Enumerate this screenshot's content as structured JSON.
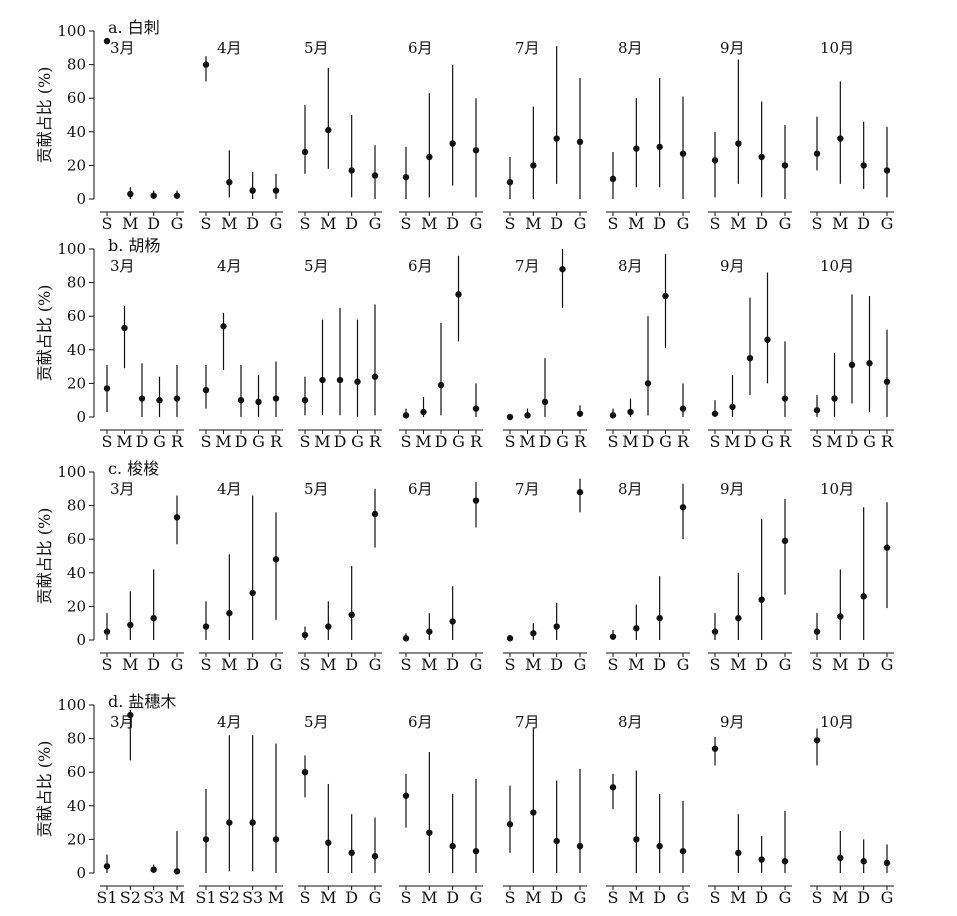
{
  "chart_data": [
    {
      "type": "errorbar",
      "title": "a. 白刺",
      "ylabel": "贡献占比 (%)",
      "ylim": [
        0,
        100
      ],
      "yticks": [
        0,
        20,
        40,
        60,
        80,
        100
      ],
      "months": [
        {
          "label": "3月",
          "categories": [
            "S",
            "M",
            "D",
            "G"
          ],
          "values": [
            94,
            3,
            2,
            2
          ],
          "lower": [
            94,
            0,
            0,
            0
          ],
          "upper": [
            94,
            7,
            5,
            5
          ]
        },
        {
          "label": "4月",
          "categories": [
            "S",
            "M",
            "D",
            "G"
          ],
          "values": [
            80,
            10,
            5,
            5
          ],
          "lower": [
            70,
            1,
            0,
            0
          ],
          "upper": [
            85,
            29,
            16,
            15
          ]
        },
        {
          "label": "5月",
          "categories": [
            "S",
            "M",
            "D",
            "G"
          ],
          "values": [
            28,
            41,
            17,
            14
          ],
          "lower": [
            15,
            18,
            1,
            0
          ],
          "upper": [
            56,
            78,
            50,
            32
          ]
        },
        {
          "label": "6月",
          "categories": [
            "S",
            "M",
            "D",
            "G"
          ],
          "values": [
            13,
            25,
            33,
            29
          ],
          "lower": [
            0,
            1,
            8,
            1
          ],
          "upper": [
            31,
            63,
            80,
            60
          ]
        },
        {
          "label": "7月",
          "categories": [
            "S",
            "M",
            "D",
            "G"
          ],
          "values": [
            10,
            20,
            36,
            34
          ],
          "lower": [
            0,
            0,
            9,
            0
          ],
          "upper": [
            25,
            55,
            91,
            72
          ]
        },
        {
          "label": "8月",
          "categories": [
            "S",
            "M",
            "D",
            "G"
          ],
          "values": [
            12,
            30,
            31,
            27
          ],
          "lower": [
            0,
            7,
            7,
            0
          ],
          "upper": [
            28,
            60,
            72,
            61
          ]
        },
        {
          "label": "9月",
          "categories": [
            "S",
            "M",
            "D",
            "G"
          ],
          "values": [
            23,
            33,
            25,
            20
          ],
          "lower": [
            1,
            9,
            1,
            0
          ],
          "upper": [
            40,
            83,
            58,
            44
          ]
        },
        {
          "label": "10月",
          "categories": [
            "S",
            "M",
            "D",
            "G"
          ],
          "values": [
            27,
            36,
            20,
            17
          ],
          "lower": [
            17,
            9,
            6,
            1
          ],
          "upper": [
            49,
            70,
            46,
            43
          ]
        }
      ]
    },
    {
      "type": "errorbar",
      "title": "b. 胡杨",
      "ylabel": "贡献占比 (%)",
      "ylim": [
        0,
        100
      ],
      "yticks": [
        0,
        20,
        40,
        60,
        80,
        100
      ],
      "months": [
        {
          "label": "3月",
          "categories": [
            "S",
            "M",
            "D",
            "G",
            "R"
          ],
          "values": [
            17,
            53,
            11,
            10,
            11
          ],
          "lower": [
            3,
            29,
            0,
            0,
            0
          ],
          "upper": [
            31,
            66,
            32,
            24,
            31
          ]
        },
        {
          "label": "4月",
          "categories": [
            "S",
            "M",
            "D",
            "G",
            "R"
          ],
          "values": [
            16,
            54,
            10,
            9,
            11
          ],
          "lower": [
            5,
            28,
            0,
            0,
            0
          ],
          "upper": [
            31,
            62,
            31,
            25,
            33
          ]
        },
        {
          "label": "5月",
          "categories": [
            "S",
            "M",
            "D",
            "G",
            "R"
          ],
          "values": [
            10,
            22,
            22,
            21,
            24
          ],
          "lower": [
            1,
            1,
            1,
            0,
            1
          ],
          "upper": [
            24,
            58,
            65,
            58,
            67
          ]
        },
        {
          "label": "6月",
          "categories": [
            "S",
            "M",
            "D",
            "G",
            "R"
          ],
          "values": [
            1,
            3,
            19,
            73,
            5
          ],
          "lower": [
            0,
            0,
            1,
            45,
            0
          ],
          "upper": [
            5,
            12,
            56,
            96,
            20
          ]
        },
        {
          "label": "7月",
          "categories": [
            "S",
            "M",
            "D",
            "G",
            "R"
          ],
          "values": [
            0,
            1,
            9,
            88,
            2
          ],
          "lower": [
            0,
            0,
            0,
            65,
            0
          ],
          "upper": [
            1,
            5,
            35,
            100,
            7
          ]
        },
        {
          "label": "8月",
          "categories": [
            "S",
            "M",
            "D",
            "G",
            "R"
          ],
          "values": [
            1,
            3,
            20,
            72,
            5
          ],
          "lower": [
            0,
            0,
            1,
            41,
            0
          ],
          "upper": [
            5,
            11,
            60,
            97,
            20
          ]
        },
        {
          "label": "9月",
          "categories": [
            "S",
            "M",
            "D",
            "G",
            "R"
          ],
          "values": [
            2,
            6,
            35,
            46,
            11
          ],
          "lower": [
            0,
            0,
            13,
            20,
            0
          ],
          "upper": [
            10,
            25,
            71,
            86,
            45
          ]
        },
        {
          "label": "10月",
          "categories": [
            "S",
            "M",
            "D",
            "G",
            "R"
          ],
          "values": [
            4,
            11,
            31,
            32,
            21
          ],
          "lower": [
            0,
            0,
            8,
            3,
            0
          ],
          "upper": [
            13,
            38,
            73,
            72,
            52
          ]
        }
      ]
    },
    {
      "type": "errorbar",
      "title": "c. 梭梭",
      "ylabel": "贡献占比 (%)",
      "ylim": [
        0,
        100
      ],
      "yticks": [
        0,
        20,
        40,
        60,
        80,
        100
      ],
      "months": [
        {
          "label": "3月",
          "categories": [
            "S",
            "M",
            "D",
            "G"
          ],
          "values": [
            5,
            9,
            13,
            73
          ],
          "lower": [
            0,
            0,
            0,
            57
          ],
          "upper": [
            16,
            29,
            42,
            86
          ]
        },
        {
          "label": "4月",
          "categories": [
            "S",
            "M",
            "D",
            "G"
          ],
          "values": [
            8,
            16,
            28,
            48
          ],
          "lower": [
            0,
            0,
            0,
            12
          ],
          "upper": [
            23,
            51,
            86,
            76
          ]
        },
        {
          "label": "5月",
          "categories": [
            "S",
            "M",
            "D",
            "G"
          ],
          "values": [
            3,
            8,
            15,
            75
          ],
          "lower": [
            0,
            0,
            0,
            55
          ],
          "upper": [
            8,
            23,
            44,
            90
          ]
        },
        {
          "label": "6月",
          "categories": [
            "S",
            "M",
            "D",
            "G"
          ],
          "values": [
            1,
            5,
            11,
            83
          ],
          "lower": [
            0,
            0,
            0,
            67
          ],
          "upper": [
            4,
            16,
            32,
            94
          ]
        },
        {
          "label": "7月",
          "categories": [
            "S",
            "M",
            "D",
            "G"
          ],
          "values": [
            1,
            4,
            8,
            88
          ],
          "lower": [
            0,
            0,
            0,
            76
          ],
          "upper": [
            3,
            10,
            22,
            96
          ]
        },
        {
          "label": "8月",
          "categories": [
            "S",
            "M",
            "D",
            "G"
          ],
          "values": [
            2,
            7,
            13,
            79
          ],
          "lower": [
            0,
            0,
            0,
            60
          ],
          "upper": [
            6,
            21,
            38,
            93
          ]
        },
        {
          "label": "9月",
          "categories": [
            "S",
            "M",
            "D",
            "G"
          ],
          "values": [
            5,
            13,
            24,
            59
          ],
          "lower": [
            0,
            0,
            0,
            27
          ],
          "upper": [
            16,
            40,
            72,
            84
          ]
        },
        {
          "label": "10月",
          "categories": [
            "S",
            "M",
            "D",
            "G"
          ],
          "values": [
            5,
            14,
            26,
            55
          ],
          "lower": [
            0,
            0,
            0,
            19
          ],
          "upper": [
            16,
            42,
            79,
            82
          ]
        }
      ]
    },
    {
      "type": "errorbar",
      "title": "d. 盐穗木",
      "ylabel": "贡献占比 (%)",
      "ylim": [
        0,
        100
      ],
      "yticks": [
        0,
        20,
        40,
        60,
        80,
        100
      ],
      "months": [
        {
          "label": "3月",
          "categories": [
            "S1",
            "S2",
            "S3",
            "M"
          ],
          "values": [
            4,
            94,
            2,
            1
          ],
          "lower": [
            0,
            67,
            0,
            0
          ],
          "upper": [
            11,
            97,
            5,
            25
          ]
        },
        {
          "label": "4月",
          "categories": [
            "S1",
            "S2",
            "S3",
            "M"
          ],
          "values": [
            20,
            30,
            30,
            20
          ],
          "lower": [
            0,
            1,
            1,
            0
          ],
          "upper": [
            50,
            82,
            82,
            77
          ]
        },
        {
          "label": "5月",
          "categories": [
            "S",
            "M",
            "D",
            "G"
          ],
          "values": [
            60,
            18,
            12,
            10
          ],
          "lower": [
            45,
            0,
            0,
            0
          ],
          "upper": [
            70,
            53,
            35,
            33
          ]
        },
        {
          "label": "6月",
          "categories": [
            "S",
            "M",
            "D",
            "G"
          ],
          "values": [
            46,
            24,
            16,
            13
          ],
          "lower": [
            27,
            0,
            0,
            0
          ],
          "upper": [
            59,
            72,
            47,
            56
          ]
        },
        {
          "label": "7月",
          "categories": [
            "S",
            "M",
            "D",
            "G"
          ],
          "values": [
            29,
            36,
            19,
            16
          ],
          "lower": [
            12,
            0,
            0,
            0
          ],
          "upper": [
            52,
            86,
            55,
            62
          ]
        },
        {
          "label": "8月",
          "categories": [
            "S",
            "M",
            "D",
            "G"
          ],
          "values": [
            51,
            20,
            16,
            13
          ],
          "lower": [
            38,
            0,
            0,
            0
          ],
          "upper": [
            59,
            61,
            47,
            43
          ]
        },
        {
          "label": "9月",
          "categories": [
            "S",
            "M",
            "D",
            "G"
          ],
          "values": [
            74,
            12,
            8,
            7
          ],
          "lower": [
            64,
            0,
            0,
            0
          ],
          "upper": [
            81,
            35,
            22,
            37
          ]
        },
        {
          "label": "10月",
          "categories": [
            "S",
            "M",
            "D",
            "G"
          ],
          "values": [
            79,
            9,
            7,
            6
          ],
          "lower": [
            64,
            0,
            0,
            0
          ],
          "upper": [
            86,
            25,
            20,
            17
          ]
        }
      ]
    }
  ]
}
